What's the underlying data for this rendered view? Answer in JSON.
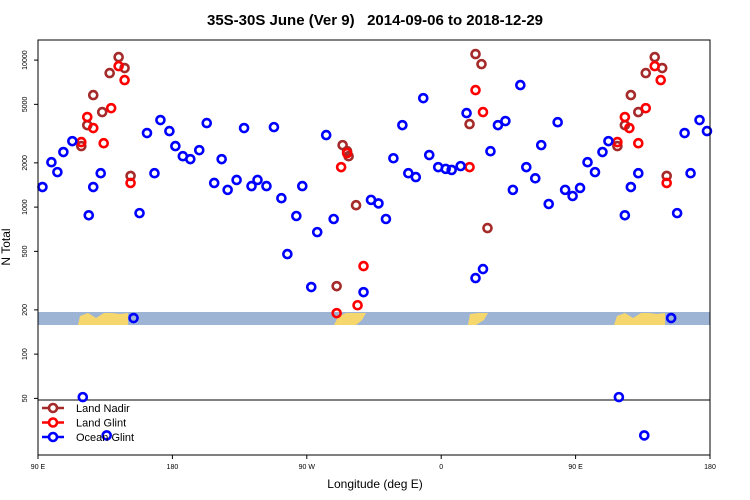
{
  "chart_data": {
    "type": "scatter",
    "title": "35S-30S June (Ver 9)   2014-09-06 to 2018-12-29",
    "x_label": "Longitude (deg E)",
    "y_label": "N Total",
    "xlim": [
      90,
      540
    ],
    "xticks": [
      {
        "value": 90,
        "label": "90 E"
      },
      180,
      {
        "value": 270,
        "label": "90 W"
      },
      {
        "value": 360,
        "label": "0"
      },
      {
        "value": 450,
        "label": "90 E"
      },
      {
        "value": 540,
        "label": "180"
      }
    ],
    "ylim": [
      20.6,
      13700
    ],
    "yticks": [
      50,
      100,
      200,
      500,
      1000,
      2000,
      5000,
      10000
    ],
    "log_y": true,
    "legend": "bottom-left",
    "series": [
      {
        "name": "Land Nadir",
        "color": "#a52a2a",
        "x": [
          119,
          123,
          127,
          133,
          138,
          144,
          148,
          152,
          290,
          294,
          297,
          298,
          303,
          379,
          383,
          387,
          391,
          478,
          483,
          487,
          492,
          497,
          503,
          508,
          511
        ],
        "values": [
          2600,
          3610,
          5780,
          4430,
          8160,
          10480,
          8830,
          1630,
          290,
          2640,
          2400,
          2220,
          1030,
          3670,
          10990,
          9390,
          720,
          2600,
          3610,
          5780,
          4430,
          8160,
          10480,
          8830,
          1630
        ]
      },
      {
        "name": "Land Glint",
        "color": "#ff0000",
        "x": [
          119,
          123,
          127,
          134,
          139,
          144,
          148,
          152,
          290,
          293,
          297,
          304,
          308,
          379,
          383,
          388,
          478,
          483,
          486,
          492,
          497,
          503,
          507,
          511
        ],
        "values": [
          2770,
          4100,
          3450,
          2720,
          4710,
          9100,
          7310,
          1460,
          190,
          1870,
          2330,
          215,
          397,
          1870,
          6250,
          4430,
          2770,
          4100,
          3450,
          2720,
          4710,
          9100,
          7310,
          1460
        ]
      },
      {
        "name": "Ocean Glint",
        "color": "#0000ff",
        "x": [
          93,
          99,
          103,
          107,
          113,
          120,
          124,
          127,
          132,
          136,
          154,
          158,
          163,
          168,
          172,
          178,
          182,
          187,
          192,
          198,
          203,
          208,
          213,
          217,
          223,
          228,
          233,
          237,
          243,
          248,
          253,
          257,
          263,
          267,
          273,
          277,
          283,
          288,
          308,
          313,
          318,
          323,
          328,
          334,
          338,
          343,
          348,
          352,
          358,
          363,
          367,
          373,
          377,
          383,
          388,
          393,
          398,
          403,
          408,
          413,
          417,
          423,
          427,
          432,
          438,
          443,
          448,
          453,
          458,
          463,
          468,
          472,
          479,
          483,
          487,
          492,
          496,
          514,
          518,
          523,
          527,
          533,
          538
        ],
        "values": [
          1370,
          2020,
          1730,
          2370,
          2810,
          51,
          880,
          1370,
          1700,
          28,
          176,
          910,
          3190,
          1700,
          3910,
          3290,
          2600,
          2220,
          2120,
          2440,
          3730,
          1460,
          2120,
          1310,
          1530,
          3450,
          1390,
          1530,
          1390,
          3500,
          1150,
          479,
          870,
          1390,
          286,
          676,
          3090,
          830,
          264,
          1120,
          1060,
          830,
          2150,
          3610,
          1700,
          1600,
          5510,
          2260,
          1870,
          1820,
          1790,
          1900,
          4360,
          329,
          379,
          2400,
          3610,
          3850,
          1310,
          6760,
          1870,
          1570,
          2640,
          1050,
          3780,
          1310,
          1190,
          1350,
          2020,
          1730,
          2370,
          2810,
          51,
          880,
          1370,
          1700,
          28,
          176,
          910,
          3190,
          1700,
          3910,
          3290
        ]
      }
    ]
  }
}
